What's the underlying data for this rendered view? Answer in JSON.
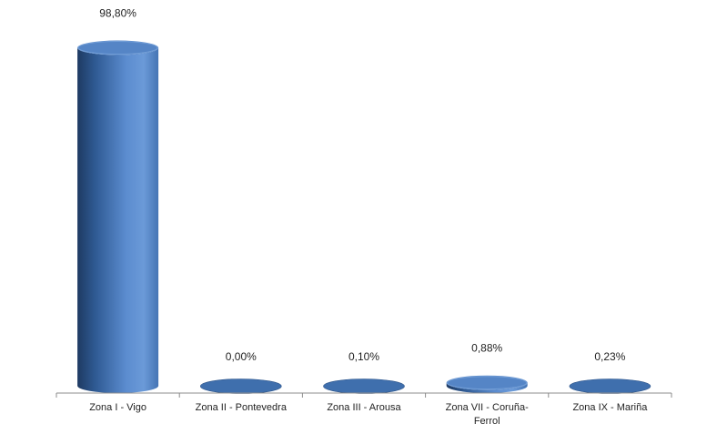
{
  "chart_data": {
    "type": "bar",
    "style": "3d-cylinder",
    "categories": [
      [
        "Zona I - Vigo"
      ],
      [
        "Zona II - Pontevedra"
      ],
      [
        "Zona III - Arousa"
      ],
      [
        "Zona VII - Coruña-",
        "Ferrol"
      ],
      [
        "Zona IX - Mariña"
      ]
    ],
    "values": [
      98.8,
      0.0,
      0.1,
      0.88,
      0.23
    ],
    "data_labels": [
      "98,80%",
      "0,00%",
      "0,10%",
      "0,88%",
      "0,23%"
    ],
    "ylim": [
      0,
      100
    ],
    "grid": false,
    "legend": "none",
    "colors": {
      "bar_light": "#6b9ad8",
      "bar_mid": "#4a7cc0",
      "bar_dark": "#1f3d66",
      "top_face": "#3f6fad",
      "axis": "#8c8c8c"
    }
  }
}
